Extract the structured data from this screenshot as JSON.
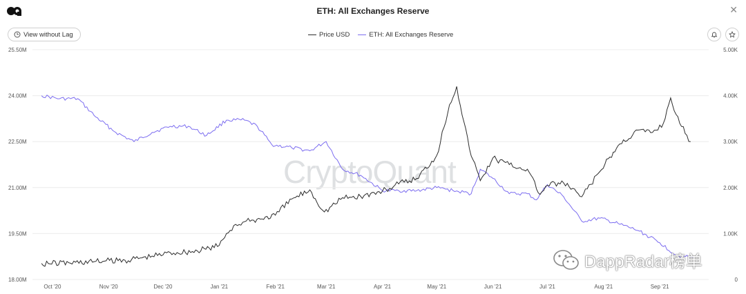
{
  "header": {
    "title": "ETH: All Exchanges Reserve",
    "lag_button": "View without Lag"
  },
  "watermark": "CryptoQuant",
  "badge_text": "DappRadar榜单",
  "colors": {
    "price": "#2b2b2b",
    "reserve": "#7b6cf0",
    "grid": "#ececec"
  },
  "chart_data": {
    "type": "line",
    "title": "ETH: All Exchanges Reserve",
    "legend": [
      "Price USD",
      "ETH: All Exchanges Reserve"
    ],
    "legend_position": "top-center",
    "x_tick_labels": [
      "Oct '20",
      "Nov '20",
      "Dec '20",
      "Jan '21",
      "Feb '21",
      "Mar '21",
      "Apr '21",
      "May '21",
      "Jun '21",
      "Jul '21",
      "Aug '21",
      "Sep '21"
    ],
    "y_left_ticks": [
      "18.00M",
      "19.50M",
      "21.00M",
      "22.50M",
      "24.00M",
      "25.50M"
    ],
    "y_right_ticks": [
      "0",
      "1.00K",
      "2.00K",
      "3.00K",
      "4.00K",
      "5.00K"
    ],
    "y_left_range": [
      18.0,
      25.5
    ],
    "y_right_range": [
      0,
      5000
    ],
    "grid": true,
    "series": [
      {
        "name": "ETH: All Exchanges Reserve",
        "axis": "left",
        "unit": "M",
        "x": [
          "2020-09-25",
          "2020-10-05",
          "2020-10-15",
          "2020-10-25",
          "2020-11-05",
          "2020-11-15",
          "2020-11-25",
          "2020-12-05",
          "2020-12-15",
          "2020-12-25",
          "2021-01-05",
          "2021-01-15",
          "2021-01-22",
          "2021-01-30",
          "2021-02-10",
          "2021-02-20",
          "2021-03-01",
          "2021-03-10",
          "2021-03-20",
          "2021-04-01",
          "2021-04-10",
          "2021-04-20",
          "2021-05-01",
          "2021-05-10",
          "2021-05-20",
          "2021-05-25",
          "2021-06-01",
          "2021-06-10",
          "2021-06-20",
          "2021-06-25",
          "2021-07-01",
          "2021-07-10",
          "2021-07-20",
          "2021-07-30",
          "2021-08-10",
          "2021-08-20",
          "2021-09-01",
          "2021-09-10",
          "2021-09-20"
        ],
        "values": [
          24.0,
          23.9,
          23.9,
          23.3,
          22.8,
          22.5,
          22.8,
          23.0,
          23.0,
          22.7,
          23.2,
          23.2,
          23.0,
          22.4,
          22.3,
          22.2,
          22.5,
          21.6,
          21.4,
          20.9,
          20.9,
          20.9,
          21.0,
          20.9,
          20.8,
          21.6,
          21.3,
          20.8,
          20.8,
          20.6,
          21.1,
          20.7,
          19.9,
          20.0,
          19.8,
          19.6,
          19.2,
          18.8,
          18.7
        ]
      },
      {
        "name": "Price USD",
        "axis": "right",
        "unit": "USD",
        "x": [
          "2020-09-25",
          "2020-10-10",
          "2020-10-25",
          "2020-11-10",
          "2020-11-25",
          "2020-12-05",
          "2020-12-20",
          "2021-01-01",
          "2021-01-05",
          "2021-01-10",
          "2021-01-20",
          "2021-02-01",
          "2021-02-10",
          "2021-02-20",
          "2021-02-28",
          "2021-03-10",
          "2021-03-20",
          "2021-04-01",
          "2021-04-10",
          "2021-04-20",
          "2021-05-01",
          "2021-05-08",
          "2021-05-12",
          "2021-05-19",
          "2021-05-25",
          "2021-06-01",
          "2021-06-10",
          "2021-06-20",
          "2021-06-27",
          "2021-07-01",
          "2021-07-10",
          "2021-07-20",
          "2021-07-30",
          "2021-08-10",
          "2021-08-20",
          "2021-08-28",
          "2021-09-03",
          "2021-09-07",
          "2021-09-12",
          "2021-09-18"
        ],
        "values": [
          350,
          365,
          395,
          420,
          510,
          585,
          620,
          740,
          1000,
          1200,
          1290,
          1400,
          1750,
          1950,
          1470,
          1780,
          1810,
          1920,
          2080,
          2200,
          2700,
          3800,
          4200,
          2850,
          2150,
          2650,
          2500,
          2400,
          1850,
          2050,
          2100,
          1800,
          2350,
          2950,
          3250,
          3200,
          3400,
          3950,
          3400,
          3000
        ]
      }
    ]
  }
}
